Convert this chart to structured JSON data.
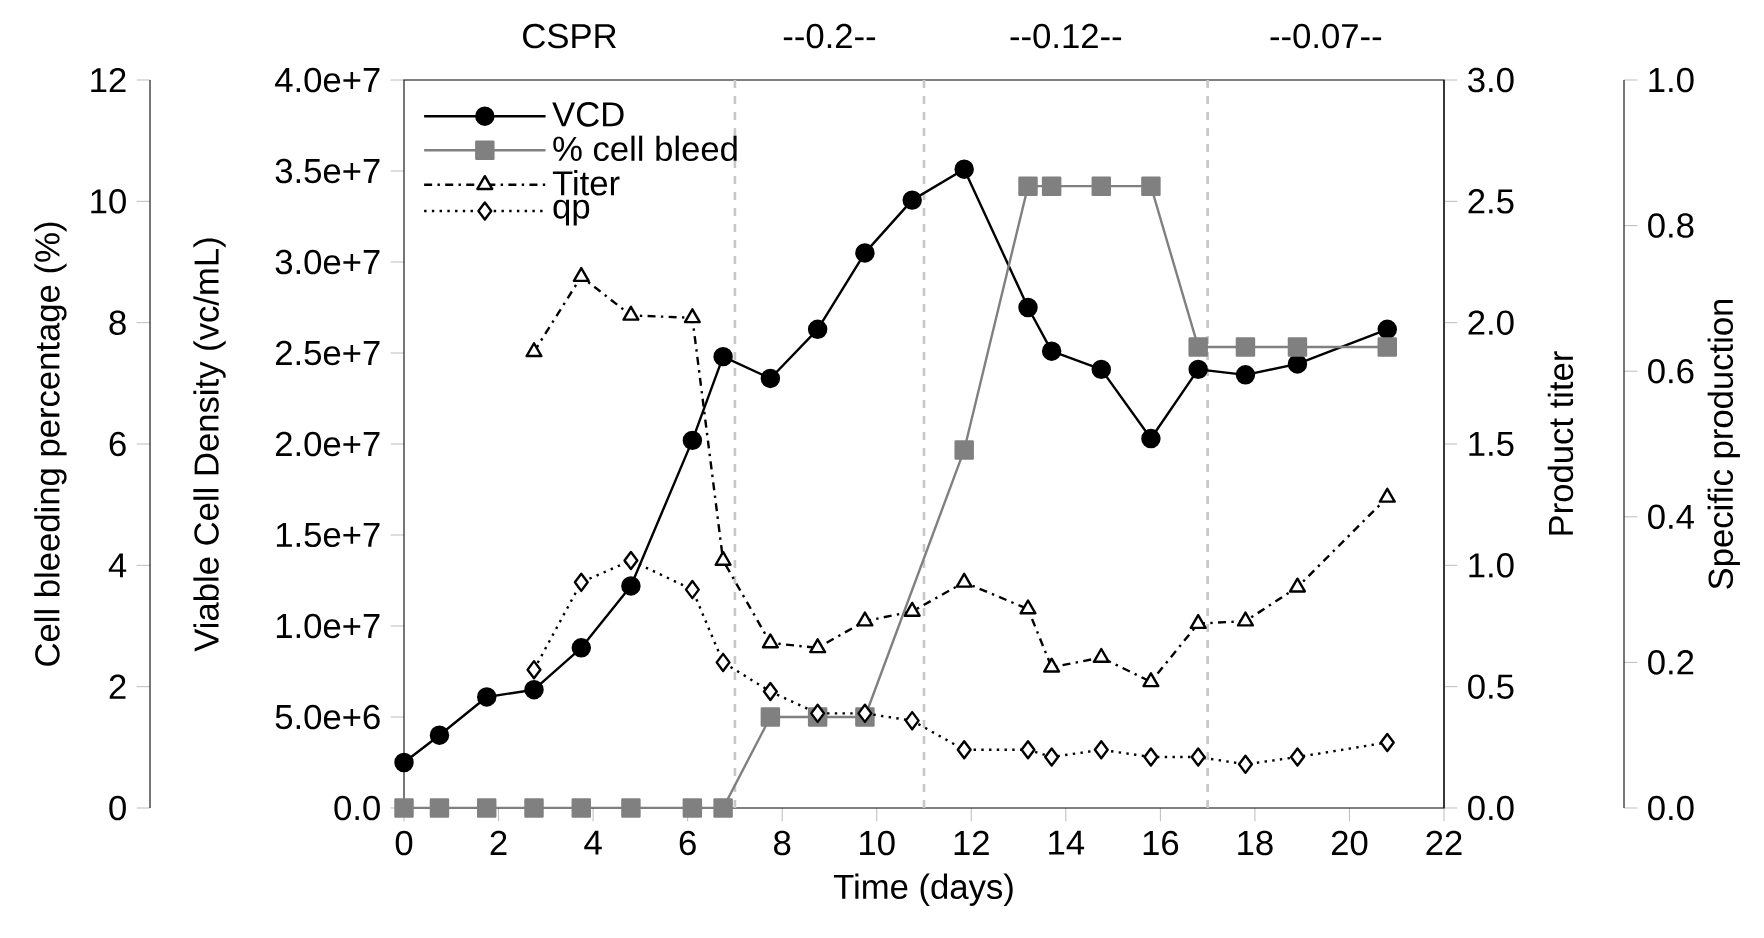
{
  "chart_data": [
    {
      "type": "line",
      "xlabel": "Time (days)",
      "ylabel": "Viable Cell Density (vc/mL)",
      "y2label": "Product titer",
      "y3label": "Cell bleeding percentage (%)",
      "xlim": [
        0,
        22
      ],
      "xticks": [
        0,
        2,
        4,
        6,
        8,
        10,
        12,
        14,
        16,
        18,
        20,
        22
      ],
      "ylim": [
        0,
        40000000
      ],
      "yticks": [
        {
          "value": 0,
          "label": "0.0"
        },
        {
          "value": 5000000,
          "label": "5.0e+6"
        },
        {
          "value": 10000000,
          "label": "1.0e+7"
        },
        {
          "value": 15000000,
          "label": "1.5e+7"
        },
        {
          "value": 20000000,
          "label": "2.0e+7"
        },
        {
          "value": 25000000,
          "label": "2.5e+7"
        },
        {
          "value": 30000000,
          "label": "3.0e+7"
        },
        {
          "value": 35000000,
          "label": "3.5e+7"
        },
        {
          "value": 40000000,
          "label": "4.0e+7"
        }
      ],
      "y2lim": [
        0,
        3
      ],
      "y2ticks": [
        {
          "value": 0,
          "label": "0.0"
        },
        {
          "value": 0.5,
          "label": "0.5"
        },
        {
          "value": 1,
          "label": "1.0"
        },
        {
          "value": 1.5,
          "label": "1.5"
        },
        {
          "value": 2,
          "label": "2.0"
        },
        {
          "value": 2.5,
          "label": "2.5"
        },
        {
          "value": 3,
          "label": "3.0"
        }
      ],
      "y3lim": [
        0,
        12
      ],
      "y3ticks": [
        0,
        2,
        4,
        6,
        8,
        10,
        12
      ],
      "legend": "top left",
      "series": [
        {
          "name": "VCD",
          "color": "#000000",
          "axis": "y",
          "marker": "circle",
          "line_style": "solid",
          "x": [
            0,
            0.75,
            1.75,
            2.75,
            3.75,
            4.8,
            6.1,
            6.75,
            7.75,
            8.75,
            9.75,
            10.75,
            11.85,
            13.2,
            13.7,
            14.75,
            15.8,
            16.8,
            17.8,
            18.9,
            20.8
          ],
          "values": [
            2500000,
            4000000,
            6100000,
            6500000,
            8800000,
            12200000,
            20200000,
            24800000,
            23600000,
            26300000,
            30500000,
            33400000,
            35100000,
            27500000,
            25100000,
            24100000,
            20300000,
            24100000,
            23800000,
            24400000,
            26300000
          ]
        },
        {
          "name": "% cell bleed",
          "color": "#808080",
          "axis": "y3",
          "marker": "square",
          "line_style": "solid",
          "x": [
            0,
            0.75,
            1.75,
            2.75,
            3.75,
            4.8,
            6.1,
            6.75,
            7.75,
            8.75,
            9.75,
            11.85,
            13.2,
            13.7,
            14.75,
            15.8,
            16.8,
            17.8,
            18.9,
            20.8
          ],
          "values": [
            0,
            0,
            0,
            0,
            0,
            0,
            0,
            0,
            1.5,
            1.5,
            1.5,
            5.9,
            10.25,
            10.25,
            10.25,
            10.25,
            7.6,
            7.6,
            7.6,
            7.6
          ]
        },
        {
          "name": "Titer",
          "color": "#000000",
          "axis": "y2",
          "marker": "triangle",
          "line_style": "dashdot",
          "x": [
            2.75,
            3.75,
            4.8,
            6.1,
            6.75,
            7.75,
            8.75,
            9.75,
            10.75,
            11.85,
            13.2,
            13.7,
            14.75,
            15.8,
            16.8,
            17.8,
            18.9,
            20.8
          ],
          "values": [
            1.88,
            2.19,
            2.03,
            2.02,
            1.02,
            0.68,
            0.66,
            0.77,
            0.81,
            0.93,
            0.82,
            0.58,
            0.62,
            0.52,
            0.76,
            0.77,
            0.91,
            1.28
          ]
        }
      ],
      "ref_lines": [
        {
          "axis": "x",
          "value": 7,
          "color": "#c8c8c8",
          "line_style": "dashed"
        },
        {
          "axis": "x",
          "value": 11,
          "color": "#c8c8c8",
          "line_style": "dashed"
        },
        {
          "axis": "x",
          "value": 17,
          "color": "#c8c8c8",
          "line_style": "dashed"
        }
      ],
      "annotations": [
        "CSPR",
        "--0.2--",
        "--0.12--",
        "--0.07--"
      ]
    },
    {
      "type": "line",
      "ylabel": "Specific production",
      "xlim": [
        0,
        22
      ],
      "ylim": [
        0,
        1
      ],
      "yticks": [
        {
          "value": 0,
          "label": "0.0"
        },
        {
          "value": 0.2,
          "label": "0.2"
        },
        {
          "value": 0.4,
          "label": "0.4"
        },
        {
          "value": 0.6,
          "label": "0.6"
        },
        {
          "value": 0.8,
          "label": "0.8"
        },
        {
          "value": 1,
          "label": "1.0"
        }
      ],
      "tick_labels": "y",
      "legend": "top left",
      "series": [
        {
          "name": "qp",
          "color": "#000000",
          "marker": "diamond",
          "line_style": "dotted",
          "x": [
            2.75,
            3.75,
            4.8,
            6.1,
            6.75,
            7.75,
            8.75,
            9.75,
            10.75,
            11.85,
            13.2,
            13.7,
            14.75,
            15.8,
            16.8,
            17.8,
            18.9,
            20.8
          ],
          "values": [
            0.19,
            0.31,
            0.34,
            0.3,
            0.2,
            0.16,
            0.13,
            0.13,
            0.12,
            0.08,
            0.08,
            0.07,
            0.08,
            0.07,
            0.07,
            0.06,
            0.07,
            0.09
          ]
        }
      ]
    }
  ]
}
